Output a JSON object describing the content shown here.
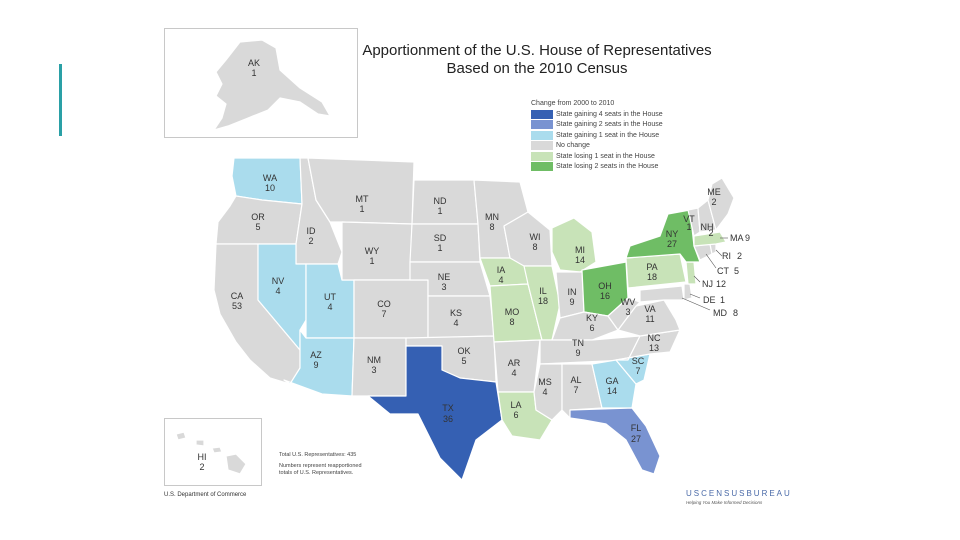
{
  "title": {
    "line1": "Apportionment of the U.S. House of Representatives",
    "line2": "Based on the 2010 Census"
  },
  "legend": {
    "title": "Change from 2000 to 2010",
    "items": [
      {
        "label": "State gaining 4 seats in the House",
        "color": "#3560b3"
      },
      {
        "label": "State gaining 2 seats in the House",
        "color": "#7993d1"
      },
      {
        "label": "State gaining 1 seat in the House",
        "color": "#aadced"
      },
      {
        "label": "No change",
        "color": "#d9d9d9"
      },
      {
        "label": "State losing 1 seat in the House",
        "color": "#c8e3b8"
      },
      {
        "label": "State losing 2 seats in the House",
        "color": "#6fbd65"
      }
    ]
  },
  "colors": {
    "accent": "#2aa0a6",
    "gain4": "#3560b3",
    "gain2": "#7993d1",
    "gain1": "#aadced",
    "nochange": "#d9d9d9",
    "lose1": "#c8e3b8",
    "lose2": "#6fbd65"
  },
  "states": {
    "AK": {
      "abbr": "AK",
      "seats": "1",
      "change": "nochange"
    },
    "HI": {
      "abbr": "HI",
      "seats": "2",
      "change": "nochange"
    },
    "WA": {
      "abbr": "WA",
      "seats": "10",
      "change": "gain1"
    },
    "OR": {
      "abbr": "OR",
      "seats": "5",
      "change": "nochange"
    },
    "CA": {
      "abbr": "CA",
      "seats": "53",
      "change": "nochange"
    },
    "ID": {
      "abbr": "ID",
      "seats": "2",
      "change": "nochange"
    },
    "NV": {
      "abbr": "NV",
      "seats": "4",
      "change": "gain1"
    },
    "UT": {
      "abbr": "UT",
      "seats": "4",
      "change": "gain1"
    },
    "AZ": {
      "abbr": "AZ",
      "seats": "9",
      "change": "gain1"
    },
    "MT": {
      "abbr": "MT",
      "seats": "1",
      "change": "nochange"
    },
    "WY": {
      "abbr": "WY",
      "seats": "1",
      "change": "nochange"
    },
    "CO": {
      "abbr": "CO",
      "seats": "7",
      "change": "nochange"
    },
    "NM": {
      "abbr": "NM",
      "seats": "3",
      "change": "nochange"
    },
    "ND": {
      "abbr": "ND",
      "seats": "1",
      "change": "nochange"
    },
    "SD": {
      "abbr": "SD",
      "seats": "1",
      "change": "nochange"
    },
    "NE": {
      "abbr": "NE",
      "seats": "3",
      "change": "nochange"
    },
    "KS": {
      "abbr": "KS",
      "seats": "4",
      "change": "nochange"
    },
    "OK": {
      "abbr": "OK",
      "seats": "5",
      "change": "nochange"
    },
    "TX": {
      "abbr": "TX",
      "seats": "36",
      "change": "gain4"
    },
    "MN": {
      "abbr": "MN",
      "seats": "8",
      "change": "nochange"
    },
    "IA": {
      "abbr": "IA",
      "seats": "4",
      "change": "lose1"
    },
    "MO": {
      "abbr": "MO",
      "seats": "8",
      "change": "lose1"
    },
    "AR": {
      "abbr": "AR",
      "seats": "4",
      "change": "nochange"
    },
    "LA": {
      "abbr": "LA",
      "seats": "6",
      "change": "lose1"
    },
    "WI": {
      "abbr": "WI",
      "seats": "8",
      "change": "nochange"
    },
    "IL": {
      "abbr": "IL",
      "seats": "18",
      "change": "lose1"
    },
    "MI": {
      "abbr": "MI",
      "seats": "14",
      "change": "lose1"
    },
    "IN": {
      "abbr": "IN",
      "seats": "9",
      "change": "nochange"
    },
    "OH": {
      "abbr": "OH",
      "seats": "16",
      "change": "lose2"
    },
    "KY": {
      "abbr": "KY",
      "seats": "6",
      "change": "nochange"
    },
    "TN": {
      "abbr": "TN",
      "seats": "9",
      "change": "nochange"
    },
    "MS": {
      "abbr": "MS",
      "seats": "4",
      "change": "nochange"
    },
    "AL": {
      "abbr": "AL",
      "seats": "7",
      "change": "nochange"
    },
    "GA": {
      "abbr": "GA",
      "seats": "14",
      "change": "gain1"
    },
    "FL": {
      "abbr": "FL",
      "seats": "27",
      "change": "gain2"
    },
    "SC": {
      "abbr": "SC",
      "seats": "7",
      "change": "gain1"
    },
    "NC": {
      "abbr": "NC",
      "seats": "13",
      "change": "nochange"
    },
    "VA": {
      "abbr": "VA",
      "seats": "11",
      "change": "nochange"
    },
    "WV": {
      "abbr": "WV",
      "seats": "3",
      "change": "nochange"
    },
    "PA": {
      "abbr": "PA",
      "seats": "18",
      "change": "lose1"
    },
    "NY": {
      "abbr": "NY",
      "seats": "27",
      "change": "lose2"
    },
    "VT": {
      "abbr": "VT",
      "seats": "1",
      "change": "nochange"
    },
    "NH": {
      "abbr": "NH",
      "seats": "2",
      "change": "nochange"
    },
    "ME": {
      "abbr": "ME",
      "seats": "2",
      "change": "nochange"
    },
    "MA": {
      "abbr": "MA",
      "seats": "9",
      "change": "lose1"
    },
    "RI": {
      "abbr": "RI",
      "seats": "2",
      "change": "nochange"
    },
    "CT": {
      "abbr": "CT",
      "seats": "5",
      "change": "nochange"
    },
    "NJ": {
      "abbr": "NJ",
      "seats": "12",
      "change": "lose1"
    },
    "DE": {
      "abbr": "DE",
      "seats": "1",
      "change": "nochange"
    },
    "MD": {
      "abbr": "MD",
      "seats": "8",
      "change": "nochange"
    }
  },
  "notes": {
    "total": "Total U.S. Representatives: 435",
    "line1": "Numbers represent reapportioned",
    "line2": "totals of U.S. Representatives."
  },
  "footer": {
    "department": "U.S. Department of Commerce",
    "bureau": "USCENSUSBUREAU",
    "tagline": "Helping You Make Informed Decisions"
  }
}
